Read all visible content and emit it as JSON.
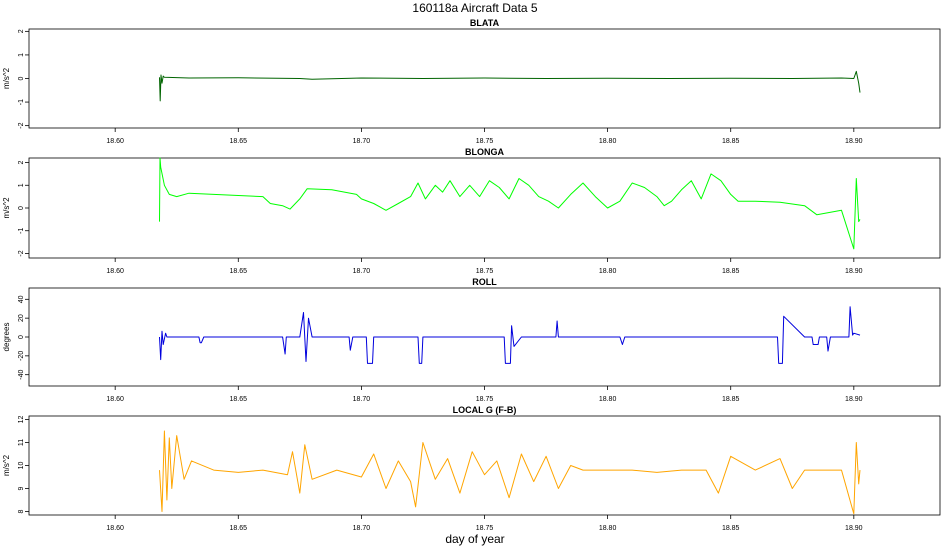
{
  "title": "160118a    Aircraft Data 5",
  "xlabel": "day of year",
  "chart_data": [
    {
      "type": "line",
      "title": "BLATA",
      "ylabel": "m/s^2",
      "color": "#006400",
      "xlim": [
        18.565,
        18.935
      ],
      "ylim": [
        -2.1,
        2.1
      ],
      "xticks": [
        18.6,
        18.65,
        18.7,
        18.75,
        18.8,
        18.85,
        18.9
      ],
      "xtick_labels": [
        "18.60",
        "18.65",
        "18.70",
        "18.75",
        "18.80",
        "18.85",
        "18.90"
      ],
      "yticks": [
        -2,
        -1,
        0,
        1,
        2
      ],
      "ytick_labels": [
        "-2",
        "-1",
        "0",
        "1",
        "2"
      ],
      "series": [
        {
          "x": [
            18.618,
            18.6183,
            18.6186,
            18.619,
            18.6195,
            18.62,
            18.63,
            18.65,
            18.675,
            18.68,
            18.7,
            18.725,
            18.75,
            18.775,
            18.8,
            18.825,
            18.85,
            18.875,
            18.895,
            18.9,
            18.901,
            18.902,
            18.9025
          ],
          "y": [
            0.05,
            -0.95,
            0.15,
            -0.2,
            0.1,
            0.05,
            0.02,
            0.03,
            0.0,
            -0.03,
            0.02,
            0.0,
            0.02,
            0.0,
            0.01,
            0.0,
            0.01,
            0.0,
            0.02,
            0.0,
            0.3,
            -0.2,
            -0.6
          ]
        }
      ]
    },
    {
      "type": "line",
      "title": "BLONGA",
      "ylabel": "m/s^2",
      "color": "#00ff00",
      "xlim": [
        18.565,
        18.935
      ],
      "ylim": [
        -2.2,
        2.2
      ],
      "xticks": [
        18.6,
        18.65,
        18.7,
        18.75,
        18.8,
        18.85,
        18.9
      ],
      "xtick_labels": [
        "18.60",
        "18.65",
        "18.70",
        "18.75",
        "18.80",
        "18.85",
        "18.90"
      ],
      "yticks": [
        -2,
        -1,
        0,
        1,
        2
      ],
      "ytick_labels": [
        "-2",
        "-1",
        "0",
        "1",
        "2"
      ],
      "series": [
        {
          "x": [
            18.618,
            18.6182,
            18.6185,
            18.62,
            18.622,
            18.625,
            18.63,
            18.64,
            18.65,
            18.66,
            18.663,
            18.668,
            18.671,
            18.675,
            18.678,
            18.688,
            18.698,
            18.7,
            18.705,
            18.71,
            18.715,
            18.72,
            18.723,
            18.726,
            18.73,
            18.733,
            18.736,
            18.74,
            18.744,
            18.748,
            18.752,
            18.756,
            18.76,
            18.764,
            18.768,
            18.772,
            18.776,
            18.78,
            18.785,
            18.79,
            18.795,
            18.8,
            18.805,
            18.81,
            18.815,
            18.82,
            18.823,
            18.826,
            18.83,
            18.834,
            18.838,
            18.842,
            18.846,
            18.85,
            18.853,
            18.856,
            18.86,
            18.87,
            18.88,
            18.885,
            18.89,
            18.895,
            18.9,
            18.901,
            18.902,
            18.9025
          ],
          "y": [
            -0.6,
            2.2,
            1.8,
            1.0,
            0.6,
            0.5,
            0.65,
            0.6,
            0.55,
            0.5,
            0.2,
            0.1,
            -0.05,
            0.4,
            0.85,
            0.8,
            0.6,
            0.4,
            0.2,
            -0.1,
            0.2,
            0.5,
            1.1,
            0.4,
            1.0,
            0.7,
            1.2,
            0.5,
            1.0,
            0.5,
            1.2,
            0.9,
            0.4,
            1.3,
            1.0,
            0.5,
            0.3,
            0.0,
            0.6,
            1.1,
            0.5,
            0.0,
            0.3,
            1.1,
            0.9,
            0.5,
            0.1,
            0.3,
            0.8,
            1.2,
            0.4,
            1.5,
            1.2,
            0.6,
            0.3,
            0.3,
            0.3,
            0.25,
            0.1,
            -0.3,
            -0.2,
            -0.1,
            -1.8,
            1.3,
            -0.6,
            -0.5
          ]
        }
      ]
    },
    {
      "type": "line",
      "title": "ROLL",
      "ylabel": "degrees",
      "color": "#0000dd",
      "xlim": [
        18.565,
        18.935
      ],
      "ylim": [
        -52,
        52
      ],
      "xticks": [
        18.6,
        18.65,
        18.7,
        18.75,
        18.8,
        18.85,
        18.9
      ],
      "xtick_labels": [
        "18.60",
        "18.65",
        "18.70",
        "18.75",
        "18.80",
        "18.85",
        "18.90"
      ],
      "yticks": [
        -40,
        -20,
        0,
        20,
        40
      ],
      "ytick_labels": [
        "-40",
        "-20",
        "0",
        "20",
        "40"
      ],
      "series": [
        {
          "x": [
            18.618,
            18.6185,
            18.619,
            18.6195,
            18.6205,
            18.621,
            18.634,
            18.6345,
            18.635,
            18.636,
            18.668,
            18.669,
            18.6695,
            18.675,
            18.6765,
            18.6775,
            18.6785,
            18.68,
            18.69,
            18.695,
            18.6955,
            18.6965,
            18.7,
            18.702,
            18.7025,
            18.7045,
            18.705,
            18.72,
            18.723,
            18.7235,
            18.7245,
            18.725,
            18.74,
            18.758,
            18.7585,
            18.7605,
            18.761,
            18.762,
            18.765,
            18.779,
            18.7795,
            18.78,
            18.805,
            18.806,
            18.807,
            18.86,
            18.869,
            18.8695,
            18.871,
            18.8715,
            18.88,
            18.883,
            18.8835,
            18.8855,
            18.886,
            18.889,
            18.8895,
            18.8905,
            18.898,
            18.8985,
            18.8995,
            18.9,
            18.9025
          ],
          "y": [
            0,
            -24,
            6,
            -8,
            4,
            0,
            0,
            -6,
            -6,
            0,
            0,
            -18,
            0,
            0,
            26,
            -26,
            20,
            0,
            0,
            0,
            -14,
            0,
            0,
            0,
            -28,
            -28,
            0,
            0,
            0,
            -28,
            -28,
            0,
            0,
            0,
            -28,
            -28,
            12,
            -10,
            0,
            0,
            17,
            0,
            0,
            -8,
            0,
            0,
            0,
            -28,
            -28,
            22,
            0,
            0,
            -8,
            -8,
            0,
            0,
            -15,
            0,
            0,
            32,
            2,
            4,
            2
          ]
        }
      ]
    },
    {
      "type": "line",
      "title": "LOCAL G (F-B)",
      "ylabel": "m/s^2",
      "color": "#ffa500",
      "xlim": [
        18.565,
        18.935
      ],
      "ylim": [
        7.85,
        12.15
      ],
      "xticks": [
        18.6,
        18.65,
        18.7,
        18.75,
        18.8,
        18.85,
        18.9
      ],
      "xtick_labels": [
        "18.60",
        "18.65",
        "18.70",
        "18.75",
        "18.80",
        "18.85",
        "18.90"
      ],
      "yticks": [
        8,
        9,
        10,
        11,
        12
      ],
      "ytick_labels": [
        "8",
        "9",
        "10",
        "11",
        "12"
      ],
      "series": [
        {
          "x": [
            18.618,
            18.619,
            18.62,
            18.621,
            18.622,
            18.623,
            18.625,
            18.628,
            18.631,
            18.64,
            18.65,
            18.66,
            18.67,
            18.672,
            18.675,
            18.677,
            18.68,
            18.69,
            18.7,
            18.705,
            18.71,
            18.715,
            18.72,
            18.722,
            18.725,
            18.73,
            18.735,
            18.74,
            18.745,
            18.75,
            18.755,
            18.76,
            18.765,
            18.77,
            18.775,
            18.78,
            18.785,
            18.79,
            18.8,
            18.81,
            18.82,
            18.83,
            18.84,
            18.845,
            18.85,
            18.86,
            18.87,
            18.875,
            18.88,
            18.89,
            18.895,
            18.9,
            18.901,
            18.902,
            18.9025
          ],
          "y": [
            9.8,
            8.0,
            11.5,
            8.5,
            11.2,
            9.0,
            11.3,
            9.4,
            10.2,
            9.8,
            9.7,
            9.8,
            9.6,
            10.6,
            8.8,
            10.9,
            9.4,
            9.8,
            9.5,
            10.5,
            9.0,
            10.2,
            9.3,
            8.2,
            11.0,
            9.4,
            10.3,
            8.8,
            10.6,
            9.6,
            10.2,
            8.6,
            10.5,
            9.3,
            10.4,
            9.0,
            10.0,
            9.8,
            9.8,
            9.8,
            9.7,
            9.8,
            9.8,
            8.8,
            10.4,
            9.8,
            10.3,
            9.0,
            9.8,
            9.8,
            9.8,
            7.9,
            11.0,
            9.2,
            9.8
          ]
        }
      ]
    }
  ]
}
